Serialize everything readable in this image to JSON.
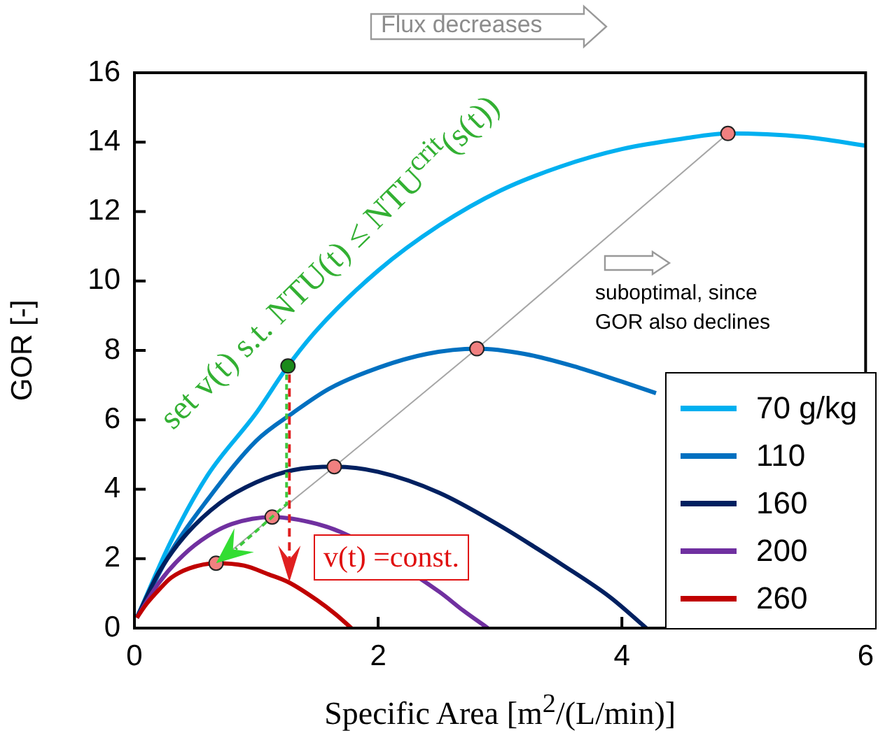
{
  "chart_data": {
    "type": "line",
    "xlabel": "Specific Area [m$^{2}$/(L/min)]",
    "ylabel": "GOR [-]",
    "xlim": [
      0,
      6
    ],
    "ylim": [
      0,
      16
    ],
    "xticks": [
      0,
      2,
      4,
      6
    ],
    "yticks": [
      0,
      2,
      4,
      6,
      8,
      10,
      12,
      14,
      16
    ],
    "grid": false,
    "legend": "bottom right",
    "marker": "none",
    "series": [
      {
        "name": "70 g/kg",
        "color": "#00b0f0",
        "x": [
          0.02,
          0.3,
          0.6,
          1.0,
          1.26,
          1.5,
          2.0,
          2.5,
          3.0,
          3.5,
          4.0,
          4.5,
          4.87,
          5.5,
          6.0
        ],
        "values": [
          0.3,
          2.5,
          4.4,
          6.2,
          7.55,
          8.6,
          10.3,
          11.6,
          12.6,
          13.3,
          13.8,
          14.1,
          14.25,
          14.15,
          13.9
        ]
      },
      {
        "name": "110",
        "color": "#0070c0",
        "x": [
          0.02,
          0.3,
          0.6,
          1.0,
          1.3,
          1.6,
          2.0,
          2.4,
          2.81,
          3.2,
          3.6,
          4.0,
          4.28
        ],
        "values": [
          0.3,
          2.2,
          3.7,
          5.4,
          6.2,
          6.9,
          7.5,
          7.9,
          8.05,
          7.9,
          7.55,
          7.1,
          6.77
        ]
      },
      {
        "name": "160",
        "color": "#002060",
        "x": [
          0.02,
          0.2,
          0.4,
          0.7,
          1.0,
          1.3,
          1.64,
          2.0,
          2.5,
          3.0,
          3.3,
          3.5,
          3.9,
          4.2
        ],
        "values": [
          0.3,
          1.6,
          2.6,
          3.6,
          4.2,
          4.55,
          4.65,
          4.5,
          3.9,
          2.95,
          2.3,
          1.85,
          0.9,
          0
        ]
      },
      {
        "name": "200",
        "color": "#7030a0",
        "x": [
          0.02,
          0.2,
          0.4,
          0.6,
          0.8,
          1.13,
          1.5,
          1.76,
          2.5,
          2.7,
          2.9
        ],
        "values": [
          0.3,
          1.3,
          2.1,
          2.65,
          3.0,
          3.2,
          3.0,
          2.66,
          1.05,
          0.5,
          0
        ]
      },
      {
        "name": "260",
        "color": "#c00000",
        "x": [
          0.02,
          0.1,
          0.2,
          0.3,
          0.45,
          0.67,
          0.9,
          1.1,
          1.26,
          1.5,
          1.65,
          1.78
        ],
        "values": [
          0.3,
          0.7,
          1.1,
          1.45,
          1.72,
          1.87,
          1.8,
          1.55,
          1.33,
          0.8,
          0.4,
          0
        ]
      },
      {
        "type": "line",
        "color": "#a6a6a6",
        "marker": "circle",
        "colors": [
          "#f08080",
          "#f08080",
          "#f08080",
          "#f08080",
          "#f08080"
        ],
        "x": [
          0.67,
          1.13,
          1.64,
          2.81,
          4.87
        ],
        "values": [
          1.87,
          3.2,
          4.65,
          8.05,
          14.25
        ]
      },
      {
        "type": "scatter",
        "color": "#1a8a1a",
        "marker": "circle",
        "x": [
          1.26
        ],
        "values": [
          7.55
        ]
      }
    ],
    "annotations": [
      "Flux decreases",
      "suboptimal, since GOR also declines",
      {
        "text": "set v(t) s.t. NTU(t) ≤ NTU$^{crit}$(s(t))",
        "x": 1.26,
        "y": 7.55
      },
      {
        "text": "v(t) =const.",
        "x": 1.26,
        "y": 1.33
      }
    ]
  }
}
